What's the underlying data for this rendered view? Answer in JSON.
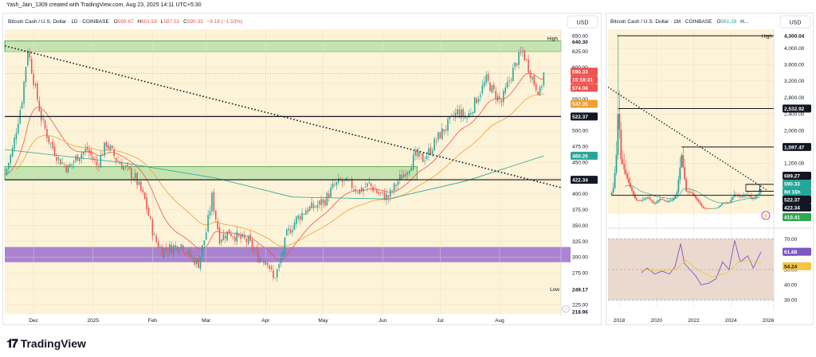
{
  "header": {
    "caption": "Yash_Jain_1309 created with TradingView.com, Aug 23, 2025 14:11 UTC+5:30"
  },
  "brand": {
    "logo_text": "TradingView"
  },
  "colors": {
    "bg": "#fdf3d8",
    "green_zone": "#8fd68a",
    "purple_zone": "#9b6fcf",
    "ma_red": "#ef5350",
    "ma_orange": "#f0a030",
    "ma_teal": "#26a69a",
    "up": "#26a69a",
    "down": "#ef5350",
    "rsi": "#7e57c2",
    "rsi_ma": "#f5c542"
  },
  "chart_data": [
    {
      "type": "candlestick",
      "title": "Bitcoin Cash / U.S. Dollar · 1D · COINBASE",
      "ohlc": {
        "o_label": "O",
        "o": "599.67",
        "h_label": "H",
        "h": "601.58",
        "l_label": "L",
        "l": "587.51",
        "c_label": "C",
        "c": "590.33",
        "chg": "−9.18 (−1.53%)"
      },
      "currency": "USD",
      "ylim": [
        210,
        660
      ],
      "y_ticks": [
        225,
        250,
        275,
        300,
        325,
        350,
        375,
        400,
        425,
        450,
        475,
        500,
        525,
        550,
        575,
        600,
        625,
        650
      ],
      "y_tick_labels": [
        "225.00",
        "250.00",
        "275.00",
        "300.00",
        "325.00",
        "350.00",
        "375.00",
        "400.00",
        "425.00",
        "450.00",
        "475.00",
        "500.00",
        "525.00",
        "550.00",
        "575.00",
        "600.00",
        "625.00",
        "650.00"
      ],
      "x_labels": [
        "Dec",
        "2025",
        "Feb",
        "Mar",
        "Apr",
        "May",
        "Jun",
        "Jul",
        "Aug"
      ],
      "x_label_days": [
        15,
        46,
        77,
        105,
        136,
        166,
        197,
        227,
        258
      ],
      "x_range_days": [
        0,
        290
      ],
      "close_path": [
        {
          "d": 0,
          "v": 430
        },
        {
          "d": 4,
          "v": 470
        },
        {
          "d": 9,
          "v": 550
        },
        {
          "d": 12,
          "v": 630
        },
        {
          "d": 15,
          "v": 580
        },
        {
          "d": 19,
          "v": 520
        },
        {
          "d": 23,
          "v": 485
        },
        {
          "d": 28,
          "v": 455
        },
        {
          "d": 33,
          "v": 440
        },
        {
          "d": 38,
          "v": 460
        },
        {
          "d": 43,
          "v": 470
        },
        {
          "d": 48,
          "v": 445
        },
        {
          "d": 53,
          "v": 480
        },
        {
          "d": 58,
          "v": 455
        },
        {
          "d": 63,
          "v": 440
        },
        {
          "d": 68,
          "v": 425
        },
        {
          "d": 73,
          "v": 390
        },
        {
          "d": 78,
          "v": 330
        },
        {
          "d": 82,
          "v": 310
        },
        {
          "d": 87,
          "v": 315
        },
        {
          "d": 92,
          "v": 320
        },
        {
          "d": 97,
          "v": 300
        },
        {
          "d": 101,
          "v": 290
        },
        {
          "d": 105,
          "v": 340
        },
        {
          "d": 108,
          "v": 395
        },
        {
          "d": 112,
          "v": 330
        },
        {
          "d": 117,
          "v": 340
        },
        {
          "d": 122,
          "v": 330
        },
        {
          "d": 127,
          "v": 325
        },
        {
          "d": 132,
          "v": 300
        },
        {
          "d": 137,
          "v": 295
        },
        {
          "d": 140,
          "v": 265
        },
        {
          "d": 143,
          "v": 285
        },
        {
          "d": 147,
          "v": 335
        },
        {
          "d": 152,
          "v": 360
        },
        {
          "d": 157,
          "v": 375
        },
        {
          "d": 162,
          "v": 380
        },
        {
          "d": 167,
          "v": 390
        },
        {
          "d": 171,
          "v": 410
        },
        {
          "d": 175,
          "v": 420
        },
        {
          "d": 180,
          "v": 415
        },
        {
          "d": 185,
          "v": 405
        },
        {
          "d": 190,
          "v": 415
        },
        {
          "d": 195,
          "v": 400
        },
        {
          "d": 200,
          "v": 395
        },
        {
          "d": 205,
          "v": 420
        },
        {
          "d": 210,
          "v": 440
        },
        {
          "d": 214,
          "v": 460
        },
        {
          "d": 218,
          "v": 455
        },
        {
          "d": 222,
          "v": 470
        },
        {
          "d": 226,
          "v": 490
        },
        {
          "d": 231,
          "v": 510
        },
        {
          "d": 236,
          "v": 530
        },
        {
          "d": 241,
          "v": 520
        },
        {
          "d": 246,
          "v": 550
        },
        {
          "d": 251,
          "v": 580
        },
        {
          "d": 255,
          "v": 560
        },
        {
          "d": 259,
          "v": 545
        },
        {
          "d": 263,
          "v": 580
        },
        {
          "d": 267,
          "v": 610
        },
        {
          "d": 270,
          "v": 625
        },
        {
          "d": 273,
          "v": 600
        },
        {
          "d": 276,
          "v": 575
        },
        {
          "d": 279,
          "v": 560
        },
        {
          "d": 281,
          "v": 590
        }
      ],
      "ma_fast_label_value": "574.08",
      "ma_slow_label_value": "547.35",
      "ma_long_label_value": "460.26",
      "ma_long_path": [
        {
          "d": 0,
          "v": 470
        },
        {
          "d": 60,
          "v": 450
        },
        {
          "d": 110,
          "v": 425
        },
        {
          "d": 150,
          "v": 395
        },
        {
          "d": 200,
          "v": 392
        },
        {
          "d": 240,
          "v": 420
        },
        {
          "d": 281,
          "v": 460
        }
      ],
      "zones": [
        {
          "name": "upper-green",
          "from": 625,
          "to": 642
        },
        {
          "name": "mid-green",
          "from": 422,
          "to": 443
        },
        {
          "name": "purple",
          "from": 292,
          "to": 316
        }
      ],
      "hlines": [
        {
          "name": "level-522",
          "value": 522.37
        },
        {
          "name": "level-422",
          "value": 422.34
        }
      ],
      "trendline": [
        {
          "d": 0,
          "v": 634
        },
        {
          "d": 290,
          "v": 410
        }
      ],
      "value_labels": {
        "high_label": "High",
        "high": "640.30",
        "price": "590.33",
        "countdown": "15:18:31",
        "ma_fast": "574.08",
        "ma_slow": "547.35",
        "level_522": "522.37",
        "ma_long": "460.26",
        "level_422": "422.34",
        "low_label": "Low",
        "low": "249.17",
        "bottom": "218.96"
      }
    },
    {
      "type": "candlestick",
      "title": "Bitcoin Cash / U.S. Dollar · 1M · COINBASE",
      "ohlc": {
        "o_label": "O",
        "o": "561.28",
        "h_label": "H",
        "h": "..."
      },
      "currency": "USD",
      "scale": "log",
      "ylim": [
        320,
        4700
      ],
      "y_ticks": [
        800,
        1200,
        1600,
        2000,
        2400,
        2800,
        3200,
        3600,
        4000
      ],
      "y_tick_labels": [
        "800.00",
        "1,200.00",
        "1,600.00",
        "2,000.00",
        "2,400.00",
        "2,800.00",
        "3,200.00",
        "3,600.00",
        "4,000.00"
      ],
      "x_labels": [
        "2018",
        "2020",
        "2022",
        "2024",
        "2026"
      ],
      "x_label_years": [
        2018,
        2020,
        2022,
        2024,
        2026
      ],
      "x_range_years": [
        2017.4,
        2026.3
      ],
      "close_path": [
        {
          "t": 2017.55,
          "v": 420
        },
        {
          "t": 2017.7,
          "v": 620
        },
        {
          "t": 2017.85,
          "v": 1400
        },
        {
          "t": 2017.95,
          "v": 2600
        },
        {
          "t": 2018.1,
          "v": 1300
        },
        {
          "t": 2018.3,
          "v": 1000
        },
        {
          "t": 2018.6,
          "v": 620
        },
        {
          "t": 2018.9,
          "v": 300
        },
        {
          "t": 2019.2,
          "v": 290
        },
        {
          "t": 2019.5,
          "v": 380
        },
        {
          "t": 2019.9,
          "v": 210
        },
        {
          "t": 2020.2,
          "v": 340
        },
        {
          "t": 2020.6,
          "v": 260
        },
        {
          "t": 2020.9,
          "v": 320
        },
        {
          "t": 2021.1,
          "v": 500
        },
        {
          "t": 2021.35,
          "v": 1400
        },
        {
          "t": 2021.6,
          "v": 520
        },
        {
          "t": 2021.9,
          "v": 480
        },
        {
          "t": 2022.2,
          "v": 300
        },
        {
          "t": 2022.5,
          "v": 110
        },
        {
          "t": 2022.9,
          "v": 100
        },
        {
          "t": 2023.3,
          "v": 120
        },
        {
          "t": 2023.55,
          "v": 240
        },
        {
          "t": 2023.9,
          "v": 230
        },
        {
          "t": 2024.2,
          "v": 450
        },
        {
          "t": 2024.5,
          "v": 380
        },
        {
          "t": 2024.9,
          "v": 440
        },
        {
          "t": 2025.2,
          "v": 330
        },
        {
          "t": 2025.5,
          "v": 470
        },
        {
          "t": 2025.62,
          "v": 590
        }
      ],
      "hlines": [
        {
          "name": "high-line",
          "value": 4300,
          "from": 2017.9
        },
        {
          "name": "level-2532",
          "value": 2532.92,
          "from": 2017.95
        },
        {
          "name": "level-1597",
          "value": 1597.47,
          "from": 2021.35
        },
        {
          "name": "level-689",
          "value": 689.27,
          "from": 2024.8
        },
        {
          "name": "level-522",
          "value": 522.37,
          "from": 2024.8
        },
        {
          "name": "level-422",
          "value": 422.34,
          "from": 2017.6
        }
      ],
      "trendline": [
        {
          "t": 2017.4,
          "v": 3050
        },
        {
          "t": 2025.0,
          "v": 690
        }
      ],
      "value_labels": {
        "high_label": "High",
        "high": "4,300.04",
        "level_2532": "2,532.92",
        "level_1597": "1,597.47",
        "level_689": "689.27",
        "price": "590.33",
        "countdown": "8d 16h",
        "level_522": "522.37",
        "level_422": "422.34",
        "ma": "410.41"
      },
      "rsi": {
        "ylim": [
          25,
          75
        ],
        "y_ticks": [
          30,
          40,
          50,
          60,
          70
        ],
        "y_tick_labels": [
          "30.00",
          "40.00",
          "50.00",
          "60.00",
          "70.00"
        ],
        "band": [
          30,
          70
        ],
        "rsi_value_label": "61.68",
        "rsi_ma_value_label": "54.24",
        "rsi_path": [
          {
            "t": 2019.2,
            "v": 48
          },
          {
            "t": 2019.5,
            "v": 51
          },
          {
            "t": 2019.9,
            "v": 47
          },
          {
            "t": 2020.3,
            "v": 49
          },
          {
            "t": 2020.7,
            "v": 47
          },
          {
            "t": 2021.0,
            "v": 52
          },
          {
            "t": 2021.3,
            "v": 67
          },
          {
            "t": 2021.5,
            "v": 54
          },
          {
            "t": 2021.8,
            "v": 50
          },
          {
            "t": 2022.1,
            "v": 46
          },
          {
            "t": 2022.4,
            "v": 40
          },
          {
            "t": 2022.8,
            "v": 41
          },
          {
            "t": 2023.2,
            "v": 44
          },
          {
            "t": 2023.55,
            "v": 55
          },
          {
            "t": 2023.9,
            "v": 50
          },
          {
            "t": 2024.2,
            "v": 69
          },
          {
            "t": 2024.5,
            "v": 55
          },
          {
            "t": 2024.9,
            "v": 59
          },
          {
            "t": 2025.2,
            "v": 51
          },
          {
            "t": 2025.62,
            "v": 61.7
          }
        ],
        "rsi_ma_path": [
          {
            "t": 2019.2,
            "v": 50
          },
          {
            "t": 2020.0,
            "v": 49
          },
          {
            "t": 2021.0,
            "v": 50
          },
          {
            "t": 2021.6,
            "v": 56
          },
          {
            "t": 2022.3,
            "v": 49
          },
          {
            "t": 2023.0,
            "v": 45
          },
          {
            "t": 2023.8,
            "v": 48
          },
          {
            "t": 2024.4,
            "v": 55
          },
          {
            "t": 2025.0,
            "v": 56
          },
          {
            "t": 2025.62,
            "v": 54.2
          }
        ]
      }
    }
  ]
}
